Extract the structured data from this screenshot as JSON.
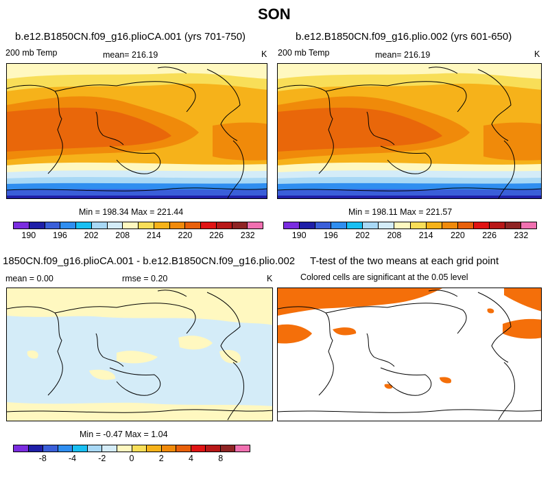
{
  "figure": {
    "season": "SON"
  },
  "panels": {
    "p1": {
      "title": "b.e12.B1850CN.f09_g16.plioCA.001 (yrs 701-750)",
      "variable": "200 mb Temp",
      "mean": "mean= 216.19",
      "units": "K",
      "minmax": "Min = 198.34 Max = 221.44"
    },
    "p2": {
      "title": "b.e12.B1850CN.f09_g16.plio.002 (yrs 601-650)",
      "variable": "200 mb Temp",
      "mean": "mean= 216.19",
      "units": "K",
      "minmax": "Min = 198.11 Max = 221.57"
    },
    "p3": {
      "title": "1850CN.f09_g16.plioCA.001 - b.e12.B1850CN.f09_g16.plio.002",
      "mean": "mean =    0.00",
      "rmse": "rmse =    0.20",
      "units": "K",
      "minmax": "Min =  -0.47 Max =    1.04"
    },
    "p4": {
      "title": "T-test of the two means at each grid point",
      "subtitle": "Colored cells are significant at the 0.05 level"
    }
  },
  "colorbars": {
    "abs": {
      "colors": [
        "#7b2de0",
        "#1f1fa8",
        "#3a5fd9",
        "#2f8ef0",
        "#19bff2",
        "#a8d8f5",
        "#d4ecf8",
        "#fff8c0",
        "#f8de58",
        "#f6b21a",
        "#f08a0a",
        "#e8600a",
        "#e01414",
        "#b81818",
        "#8f2424",
        "#f070b0"
      ],
      "labels": [
        "190",
        "196",
        "202",
        "208",
        "214",
        "220",
        "226",
        "232"
      ]
    },
    "diff": {
      "colors": [
        "#7b2de0",
        "#1f1fa8",
        "#3a5fd9",
        "#2f8ef0",
        "#19bff2",
        "#a8d8f5",
        "#d4ecf8",
        "#fff8c0",
        "#f8de58",
        "#f6b21a",
        "#f08a0a",
        "#e8600a",
        "#e01414",
        "#b81818",
        "#8f2424",
        "#f070b0"
      ],
      "labels": [
        "-8",
        "-4",
        "-2",
        "0",
        "2",
        "4",
        "8"
      ]
    }
  },
  "palette": {
    "sig": "#f46f0a"
  }
}
